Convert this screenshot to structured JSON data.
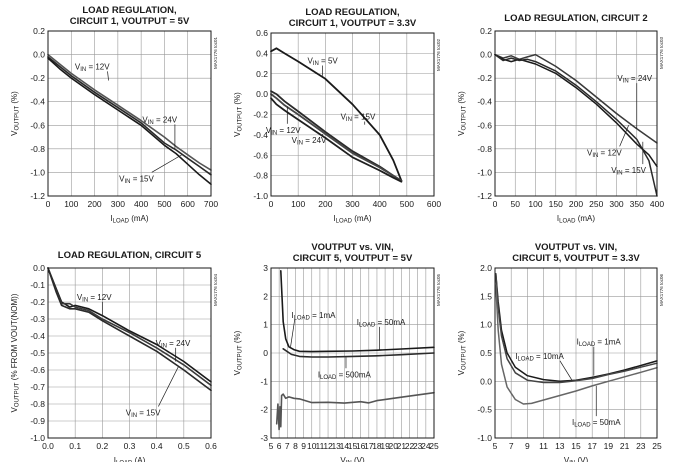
{
  "chart_data": [
    {
      "type": "line",
      "title": [
        "LOAD REGULATION,",
        "CIRCUIT 1, VOUTPUT = 5V"
      ],
      "part_id": "MAX1776 toc01",
      "xlabel": "ILOAD (mA)",
      "ylabel": "VOUTPUT (%)",
      "xlim": [
        0,
        700
      ],
      "ylim": [
        -1.2,
        0.2
      ],
      "xticks": [
        0,
        100,
        200,
        300,
        400,
        500,
        600,
        700
      ],
      "yticks": [
        0.2,
        0,
        -0.2,
        -0.4,
        -0.6,
        -0.8,
        -1.0,
        -1.2
      ],
      "grid": true,
      "series": [
        {
          "name": "VIN = 12V",
          "x": [
            0,
            50,
            100,
            200,
            300,
            400,
            500,
            550,
            600,
            650,
            700
          ],
          "y": [
            -0.02,
            -0.1,
            -0.18,
            -0.32,
            -0.45,
            -0.58,
            -0.75,
            -0.81,
            -0.88,
            -0.95,
            -1.02
          ]
        },
        {
          "name": "VIN = 24V",
          "x": [
            0,
            50,
            100,
            200,
            300,
            400,
            500,
            550,
            600,
            650,
            700
          ],
          "y": [
            0,
            -0.08,
            -0.16,
            -0.3,
            -0.43,
            -0.56,
            -0.7,
            -0.78,
            -0.85,
            -0.92,
            -0.98
          ]
        },
        {
          "name": "VIN = 15V",
          "x": [
            0,
            50,
            100,
            200,
            300,
            400,
            500,
            550,
            600,
            650,
            700
          ],
          "y": [
            -0.03,
            -0.12,
            -0.2,
            -0.34,
            -0.47,
            -0.6,
            -0.77,
            -0.84,
            -0.93,
            -1.02,
            -1.1
          ]
        }
      ],
      "annotations": [
        {
          "text": "VIN = 12V",
          "x": 260,
          "y": -0.22,
          "tx": 190,
          "ty": -0.1
        },
        {
          "text": "VIN = 24V",
          "x": 545,
          "y": -0.8,
          "tx": 480,
          "ty": -0.55
        },
        {
          "text": "VIN = 15V",
          "x": 575,
          "y": -0.85,
          "tx": 380,
          "ty": -1.05
        }
      ]
    },
    {
      "type": "line",
      "title": [
        "LOAD REGULATION,",
        "CIRCUIT 1, VOUTPUT = 3.3V"
      ],
      "part_id": "MAX1776 toc02",
      "xlabel": "ILOAD (mA)",
      "ylabel": "VOUTPUT (%)",
      "xlim": [
        0,
        600
      ],
      "ylim": [
        -1.0,
        0.6
      ],
      "xticks": [
        0,
        100,
        200,
        300,
        400,
        500,
        600
      ],
      "yticks": [
        0.6,
        0.4,
        0.2,
        0,
        -0.2,
        -0.4,
        -0.6,
        -0.8,
        -1.0
      ],
      "grid": true,
      "series": [
        {
          "name": "VIN = 5V",
          "x": [
            0,
            20,
            50,
            100,
            200,
            300,
            400,
            450,
            480
          ],
          "y": [
            0.42,
            0.45,
            0.4,
            0.32,
            0.15,
            -0.1,
            -0.4,
            -0.65,
            -0.85
          ]
        },
        {
          "name": "VIN = 15V",
          "x": [
            0,
            20,
            50,
            100,
            200,
            300,
            400,
            450,
            480
          ],
          "y": [
            0.03,
            0.0,
            -0.07,
            -0.17,
            -0.37,
            -0.56,
            -0.71,
            -0.8,
            -0.85
          ]
        },
        {
          "name": "VIN = 12V",
          "x": [
            0,
            20,
            50,
            100,
            200,
            300,
            400,
            450,
            480
          ],
          "y": [
            0.0,
            -0.04,
            -0.11,
            -0.2,
            -0.39,
            -0.58,
            -0.72,
            -0.8,
            -0.85
          ]
        },
        {
          "name": "VIN = 24V",
          "x": [
            0,
            20,
            50,
            100,
            200,
            300,
            400,
            450,
            480
          ],
          "y": [
            -0.04,
            -0.1,
            -0.16,
            -0.25,
            -0.43,
            -0.62,
            -0.75,
            -0.82,
            -0.86
          ]
        }
      ],
      "annotations": [
        {
          "text": "VIN = 5V",
          "x": 190,
          "y": 0.18,
          "tx": 190,
          "ty": 0.33
        },
        {
          "text": "VIN = 15V",
          "x": 345,
          "y": -0.3,
          "tx": 320,
          "ty": -0.22
        },
        {
          "text": "VIN = 12V",
          "x": 60,
          "y": -0.12,
          "tx": 45,
          "ty": -0.35
        },
        {
          "text": "VIN = 24V",
          "x": 190,
          "y": -0.4,
          "tx": 140,
          "ty": -0.45
        }
      ]
    },
    {
      "type": "line",
      "title": [
        "LOAD REGULATION, CIRCUIT 2"
      ],
      "part_id": "MAX1776 toc03",
      "xlabel": "ILOAD (mA)",
      "ylabel": "VOUTPUT (%)",
      "xlim": [
        0,
        400
      ],
      "ylim": [
        -1.2,
        0.2
      ],
      "xticks": [
        0,
        50,
        100,
        150,
        200,
        250,
        300,
        350,
        400
      ],
      "yticks": [
        0.2,
        0,
        -0.2,
        -0.4,
        -0.6,
        -0.8,
        -1.0,
        -1.2
      ],
      "grid": true,
      "series": [
        {
          "name": "VIN = 24V",
          "x": [
            0,
            20,
            40,
            60,
            80,
            100,
            150,
            200,
            250,
            300,
            350,
            400
          ],
          "y": [
            0,
            -0.03,
            -0.01,
            -0.04,
            -0.02,
            0,
            -0.1,
            -0.22,
            -0.36,
            -0.5,
            -0.63,
            -0.75
          ]
        },
        {
          "name": "VIN = 12V",
          "x": [
            0,
            20,
            40,
            60,
            80,
            100,
            150,
            200,
            250,
            300,
            350,
            380,
            400
          ],
          "y": [
            0,
            -0.04,
            -0.06,
            -0.04,
            -0.06,
            -0.08,
            -0.16,
            -0.28,
            -0.42,
            -0.58,
            -0.76,
            -0.85,
            -0.95
          ]
        },
        {
          "name": "VIN = 15V",
          "x": [
            0,
            20,
            40,
            60,
            80,
            100,
            150,
            200,
            250,
            300,
            350,
            380,
            400
          ],
          "y": [
            0,
            -0.05,
            -0.03,
            -0.05,
            -0.04,
            -0.06,
            -0.14,
            -0.26,
            -0.4,
            -0.55,
            -0.72,
            -0.9,
            -1.2
          ]
        }
      ],
      "annotations": [
        {
          "text": "VIN = 24V",
          "x": 350,
          "y": -0.63,
          "tx": 345,
          "ty": -0.2
        },
        {
          "text": "VIN = 12V",
          "x": 330,
          "y": -0.6,
          "tx": 270,
          "ty": -0.83
        },
        {
          "text": "VIN = 15V",
          "x": 365,
          "y": -0.74,
          "tx": 330,
          "ty": -0.98
        }
      ]
    },
    {
      "type": "line",
      "title": [
        "LOAD REGULATION, CIRCUIT 5"
      ],
      "part_id": "MAX1776 toc04",
      "xlabel": "ILOAD (A)",
      "ylabel": "VOUTPUT (% FROM VOUT(NOM))",
      "xlim": [
        0,
        0.6
      ],
      "ylim": [
        -1.0,
        0
      ],
      "xticks": [
        0,
        0.1,
        0.2,
        0.3,
        0.4,
        0.5,
        0.6
      ],
      "yticks": [
        0,
        -0.1,
        -0.2,
        -0.3,
        -0.4,
        -0.5,
        -0.6,
        -0.7,
        -0.8,
        -0.9,
        -1.0
      ],
      "grid": true,
      "series": [
        {
          "name": "VIN = 12V",
          "x": [
            0,
            0.03,
            0.05,
            0.08,
            0.1,
            0.15,
            0.2,
            0.3,
            0.4,
            0.5,
            0.6
          ],
          "y": [
            0,
            -0.12,
            -0.2,
            -0.23,
            -0.22,
            -0.24,
            -0.28,
            -0.37,
            -0.45,
            -0.55,
            -0.67
          ]
        },
        {
          "name": "VIN = 24V",
          "x": [
            0,
            0.03,
            0.05,
            0.08,
            0.1,
            0.15,
            0.2,
            0.3,
            0.4,
            0.5,
            0.6
          ],
          "y": [
            0,
            -0.13,
            -0.21,
            -0.21,
            -0.23,
            -0.25,
            -0.3,
            -0.38,
            -0.47,
            -0.57,
            -0.69
          ]
        },
        {
          "name": "VIN = 15V",
          "x": [
            0,
            0.03,
            0.05,
            0.08,
            0.1,
            0.15,
            0.2,
            0.3,
            0.4,
            0.5,
            0.6
          ],
          "y": [
            0,
            -0.14,
            -0.22,
            -0.24,
            -0.24,
            -0.26,
            -0.31,
            -0.4,
            -0.49,
            -0.6,
            -0.72
          ]
        }
      ],
      "annotations": [
        {
          "text": "VIN = 12V",
          "x": 0.2,
          "y": -0.28,
          "tx": 0.17,
          "ty": -0.17
        },
        {
          "text": "VIN = 24V",
          "x": 0.47,
          "y": -0.55,
          "tx": 0.46,
          "ty": -0.44
        },
        {
          "text": "VIN = 15V",
          "x": 0.48,
          "y": -0.58,
          "tx": 0.35,
          "ty": -0.85
        }
      ]
    },
    {
      "type": "line",
      "title": [
        "VOUTPUT vs. VIN,",
        "CIRCUIT 5, VOUTPUT = 5V"
      ],
      "part_id": "MAX1776 toc05",
      "xlabel": "VIN (V)",
      "ylabel": "VOUTPUT (%)",
      "xlim": [
        5,
        25
      ],
      "ylim": [
        -3,
        3
      ],
      "xticks": [
        5,
        6,
        7,
        8,
        9,
        10,
        11,
        12,
        13,
        14,
        15,
        16,
        17,
        18,
        19,
        20,
        21,
        22,
        23,
        24,
        25
      ],
      "yticks": [
        3,
        2,
        1,
        0,
        -1,
        -2,
        -3
      ],
      "grid": true,
      "series": [
        {
          "name": "ILOAD = 1mA",
          "x": [
            6.2,
            6.35,
            6.5,
            6.8,
            7.2,
            7.8,
            8.5,
            10,
            12,
            15,
            18,
            21,
            25
          ],
          "y": [
            2.9,
            2.0,
            1.1,
            0.5,
            0.22,
            0.12,
            0.06,
            0.05,
            0.06,
            0.07,
            0.1,
            0.14,
            0.2
          ]
        },
        {
          "name": "ILOAD = 50mA",
          "x": [
            6.5,
            7.5,
            8.5,
            10,
            12,
            15,
            18,
            21,
            25
          ],
          "y": [
            0.15,
            -0.05,
            -0.12,
            -0.14,
            -0.14,
            -0.12,
            -0.1,
            -0.06,
            0.0
          ]
        },
        {
          "name": "ILOAD = 500mA",
          "x": [
            5.7,
            5.85,
            6.0,
            6.1,
            6.2,
            6.3,
            6.5,
            6.8,
            7.2,
            7.8,
            8.5,
            10,
            12,
            14,
            16,
            17,
            18,
            20,
            22,
            24,
            25
          ],
          "y": [
            -2.5,
            -1.8,
            -2.7,
            -1.9,
            -2.6,
            -1.5,
            -1.45,
            -1.6,
            -1.55,
            -1.6,
            -1.62,
            -1.75,
            -1.74,
            -1.77,
            -1.72,
            -1.76,
            -1.68,
            -1.6,
            -1.52,
            -1.44,
            -1.4
          ]
        }
      ],
      "annotations": [
        {
          "text": "ILOAD = 1mA",
          "x": 7.4,
          "y": 0.22,
          "tx": 10.2,
          "ty": 1.35
        },
        {
          "text": "ILOAD = 50mA",
          "x": 18.3,
          "y": 0.1,
          "tx": 18.5,
          "ty": 1.1
        },
        {
          "text": "ILOAD = 500mA",
          "x": 14.2,
          "y": -0.15,
          "tx": 14.0,
          "ty": -0.75
        }
      ]
    },
    {
      "type": "line",
      "title": [
        "VOUTPUT vs. VIN,",
        "CIRCUIT 5, VOUTPUT = 3.3V"
      ],
      "part_id": "MAX1776 toc06",
      "xlabel": "VIN (V)",
      "ylabel": "VOUTPUT (%)",
      "xlim": [
        5,
        25
      ],
      "ylim": [
        -1.0,
        2.0
      ],
      "xticks": [
        5,
        7,
        9,
        11,
        13,
        15,
        17,
        19,
        21,
        23,
        25
      ],
      "yticks": [
        2.0,
        1.5,
        1.0,
        0.5,
        0,
        -0.5,
        -1.0
      ],
      "grid": true,
      "series": [
        {
          "name": "ILOAD = 1mA",
          "x": [
            5.1,
            5.4,
            5.8,
            6.5,
            7.5,
            9,
            11,
            13,
            15,
            17,
            19,
            21,
            23,
            25
          ],
          "y": [
            1.9,
            1.4,
            0.9,
            0.5,
            0.25,
            0.1,
            0.03,
            0.0,
            0.02,
            0.07,
            0.13,
            0.2,
            0.28,
            0.36
          ]
        },
        {
          "name": "ILOAD = 10mA",
          "x": [
            5.1,
            5.4,
            5.8,
            6.5,
            7.5,
            9,
            11,
            13,
            15,
            17,
            19,
            21,
            23,
            25
          ],
          "y": [
            1.9,
            1.3,
            0.8,
            0.4,
            0.15,
            0.02,
            -0.02,
            -0.02,
            0.01,
            0.05,
            0.12,
            0.18,
            0.25,
            0.32
          ]
        },
        {
          "name": "ILOAD = 50mA",
          "x": [
            5.1,
            5.4,
            5.8,
            6.5,
            7.5,
            8.5,
            9.5,
            11,
            13,
            15,
            17,
            19,
            21,
            23,
            25
          ],
          "y": [
            1.7,
            0.9,
            0.3,
            -0.1,
            -0.32,
            -0.4,
            -0.39,
            -0.33,
            -0.25,
            -0.17,
            -0.08,
            0.0,
            0.08,
            0.16,
            0.24
          ]
        }
      ],
      "annotations": [
        {
          "text": "ILOAD = 1mA",
          "x": 17.2,
          "y": 0.1,
          "tx": 17.8,
          "ty": 0.7
        },
        {
          "text": "ILOAD = 10mA",
          "x": 14.5,
          "y": 0.02,
          "tx": 10.5,
          "ty": 0.45
        },
        {
          "text": "ILOAD = 50mA",
          "x": 17.5,
          "y": -0.08,
          "tx": 17.5,
          "ty": -0.72
        }
      ]
    }
  ]
}
